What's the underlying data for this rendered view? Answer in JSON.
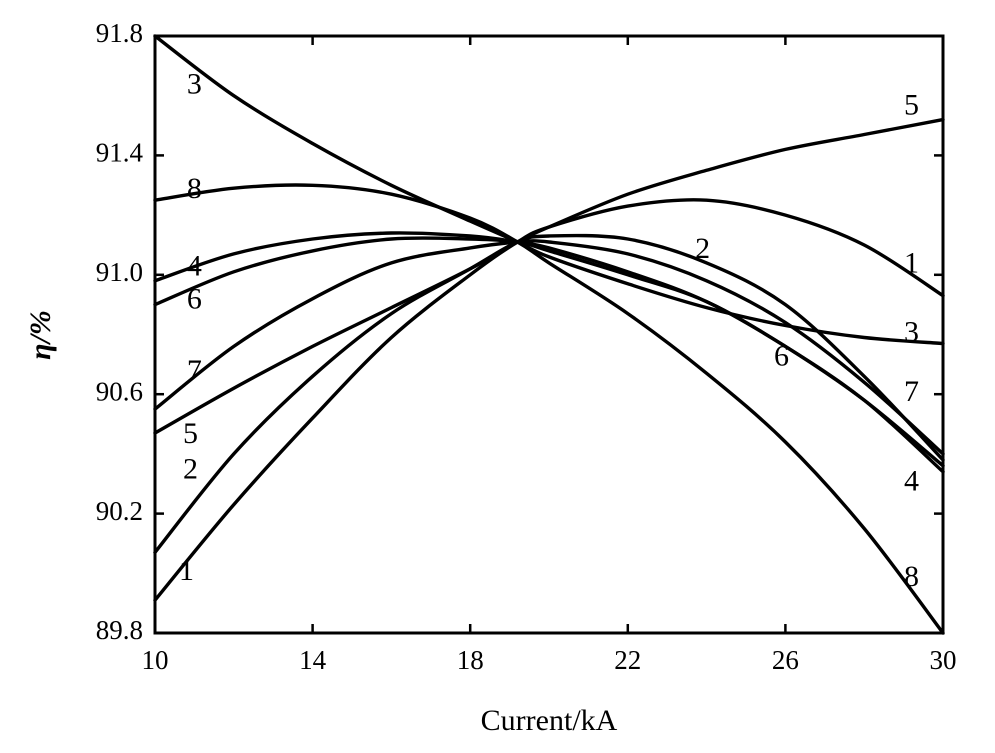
{
  "chart_data": {
    "type": "line",
    "title": "",
    "xlabel": "Current/kA",
    "ylabel": "η/%",
    "xlim": [
      10,
      30
    ],
    "ylim": [
      89.8,
      91.8
    ],
    "xticks": [
      10,
      14,
      18,
      22,
      26,
      30
    ],
    "yticks": [
      89.8,
      90.2,
      90.6,
      91.0,
      91.4,
      91.8
    ],
    "ytick_labels": [
      "89.8",
      "90.2",
      "90.6",
      "91.0",
      "91.4",
      "91.8"
    ],
    "grid": false,
    "legend": "none",
    "line_color": "#000000",
    "series": [
      {
        "name": "1",
        "x": [
          10,
          12,
          14,
          16,
          18,
          19.2,
          20,
          22,
          24,
          26,
          28,
          30
        ],
        "y": [
          89.91,
          90.23,
          90.52,
          90.79,
          91.0,
          91.11,
          91.16,
          91.23,
          91.25,
          91.2,
          91.1,
          90.93
        ]
      },
      {
        "name": "2",
        "x": [
          10,
          12,
          14,
          16,
          18,
          19.2,
          20,
          22,
          24,
          26,
          28,
          30
        ],
        "y": [
          90.07,
          90.4,
          90.66,
          90.87,
          91.02,
          91.11,
          91.13,
          91.12,
          91.04,
          90.9,
          90.66,
          90.38
        ]
      },
      {
        "name": "3",
        "x": [
          10,
          12,
          14,
          16,
          18,
          19.2,
          20,
          22,
          24,
          26,
          28,
          30
        ],
        "y": [
          91.8,
          91.6,
          91.44,
          91.3,
          91.18,
          91.11,
          91.06,
          90.97,
          90.89,
          90.83,
          90.79,
          90.77
        ]
      },
      {
        "name": "4",
        "x": [
          10,
          12,
          14,
          16,
          18,
          19.2,
          20,
          22,
          24,
          26,
          28,
          30
        ],
        "y": [
          90.98,
          91.07,
          91.12,
          91.14,
          91.13,
          91.11,
          91.09,
          91.01,
          90.91,
          90.76,
          90.58,
          90.36
        ]
      },
      {
        "name": "5",
        "x": [
          10,
          12,
          14,
          16,
          18,
          19.2,
          20,
          22,
          24,
          26,
          28,
          30
        ],
        "y": [
          90.47,
          90.62,
          90.76,
          90.89,
          91.02,
          91.11,
          91.16,
          91.27,
          91.35,
          91.42,
          91.47,
          91.52
        ]
      },
      {
        "name": "6",
        "x": [
          10,
          12,
          14,
          16,
          18,
          19.2,
          20,
          22,
          24,
          26,
          28,
          30
        ],
        "y": [
          90.9,
          91.01,
          91.08,
          91.12,
          91.12,
          91.11,
          91.08,
          91.0,
          90.91,
          90.76,
          90.58,
          90.34
        ]
      },
      {
        "name": "7",
        "x": [
          10,
          12,
          14,
          16,
          18,
          19.2,
          20,
          22,
          24,
          26,
          28,
          30
        ],
        "y": [
          90.55,
          90.76,
          90.92,
          91.04,
          91.09,
          91.11,
          91.11,
          91.07,
          90.98,
          90.84,
          90.64,
          90.4
        ]
      },
      {
        "name": "8",
        "x": [
          10,
          12,
          14,
          16,
          18,
          19.2,
          20,
          22,
          24,
          26,
          28,
          30
        ],
        "y": [
          91.25,
          91.29,
          91.3,
          91.27,
          91.19,
          91.11,
          91.04,
          90.87,
          90.67,
          90.44,
          90.15,
          89.8
        ]
      }
    ],
    "annotations": [
      {
        "text": "3",
        "x": 11.0,
        "y": 91.63
      },
      {
        "text": "8",
        "x": 11.0,
        "y": 91.28
      },
      {
        "text": "4",
        "x": 11.0,
        "y": 91.02
      },
      {
        "text": "6",
        "x": 11.0,
        "y": 90.91
      },
      {
        "text": "7",
        "x": 11.0,
        "y": 90.67
      },
      {
        "text": "5",
        "x": 10.9,
        "y": 90.46
      },
      {
        "text": "2",
        "x": 10.9,
        "y": 90.34
      },
      {
        "text": "1",
        "x": 10.8,
        "y": 90.0
      },
      {
        "text": "5",
        "x": 29.2,
        "y": 91.56
      },
      {
        "text": "2",
        "x": 23.9,
        "y": 91.08
      },
      {
        "text": "1",
        "x": 29.2,
        "y": 91.03
      },
      {
        "text": "3",
        "x": 29.2,
        "y": 90.8
      },
      {
        "text": "6",
        "x": 25.9,
        "y": 90.72
      },
      {
        "text": "7",
        "x": 29.2,
        "y": 90.6
      },
      {
        "text": "4",
        "x": 29.2,
        "y": 90.3
      },
      {
        "text": "8",
        "x": 29.2,
        "y": 89.98
      }
    ]
  }
}
